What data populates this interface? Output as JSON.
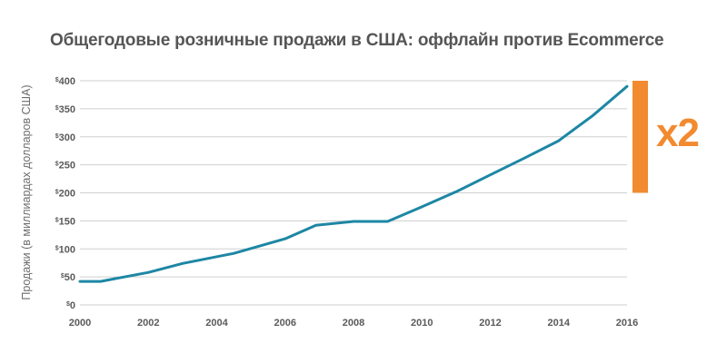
{
  "chart_data": {
    "type": "line",
    "title": "Общегодовые розничные продажи в США: оффлайн против Ecommerce",
    "xlabel": "",
    "ylabel": "Продажи (в миллиардах долларов США)",
    "xlim": [
      2000,
      2016
    ],
    "ylim": [
      0,
      400
    ],
    "x_ticks": [
      2000,
      2002,
      2004,
      2006,
      2008,
      2010,
      2012,
      2014,
      2016
    ],
    "y_ticks": [
      0,
      50,
      100,
      150,
      200,
      250,
      300,
      350,
      400
    ],
    "y_tick_prefix": "$",
    "grid": "horizontal",
    "legend": "none",
    "series": [
      {
        "color": "#1d87a4",
        "x": [
          2000,
          2000.6,
          2002,
          2003,
          2004.5,
          2006,
          2006.9,
          2008,
          2009,
          2010,
          2011,
          2012,
          2013,
          2014,
          2015,
          2016
        ],
        "y": [
          42,
          42,
          58,
          74,
          92,
          118,
          142,
          149,
          149,
          175,
          202,
          232,
          262,
          293,
          338,
          390
        ]
      }
    ],
    "annotation": {
      "text": "x2",
      "range": [
        200,
        400
      ],
      "color": "#f28a30"
    }
  }
}
